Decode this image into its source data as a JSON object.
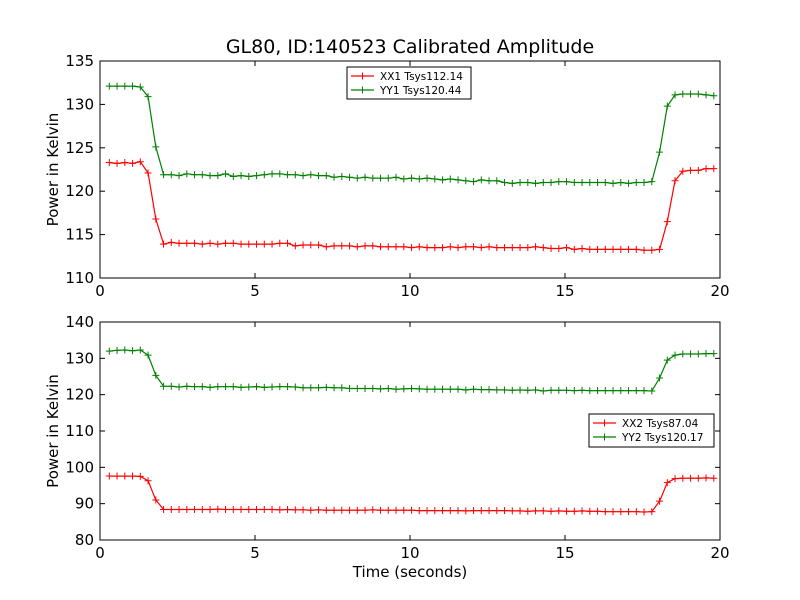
{
  "chart_data": [
    {
      "type": "line",
      "title": "GL80, ID:140523 Calibrated Amplitude",
      "xlabel": "",
      "ylabel": "Power in Kelvin",
      "xlim": [
        0,
        20
      ],
      "ylim": [
        110,
        135
      ],
      "xticks": [
        "0",
        "5",
        "10",
        "15",
        "20"
      ],
      "yticks": [
        "110",
        "115",
        "120",
        "125",
        "130",
        "135"
      ],
      "legend_position": "upper-center",
      "series": [
        {
          "name": "XX1 Tsys112.14",
          "color": "#ff0000",
          "x": [
            0.3,
            0.55,
            0.8,
            1.05,
            1.3,
            1.55,
            1.8,
            2.05,
            2.3,
            2.55,
            2.8,
            3.05,
            3.3,
            3.55,
            3.8,
            4.05,
            4.3,
            4.55,
            4.8,
            5.05,
            5.3,
            5.55,
            5.8,
            6.05,
            6.3,
            6.55,
            6.8,
            7.05,
            7.3,
            7.55,
            7.8,
            8.05,
            8.3,
            8.55,
            8.8,
            9.05,
            9.3,
            9.55,
            9.8,
            10.05,
            10.3,
            10.55,
            10.8,
            11.05,
            11.3,
            11.55,
            11.8,
            12.05,
            12.3,
            12.55,
            12.8,
            13.05,
            13.3,
            13.55,
            13.8,
            14.05,
            14.3,
            14.55,
            14.8,
            15.05,
            15.3,
            15.55,
            15.8,
            16.05,
            16.3,
            16.55,
            16.8,
            17.05,
            17.3,
            17.55,
            17.8,
            18.05,
            18.3,
            18.55,
            18.8,
            19.05,
            19.3,
            19.55,
            19.8
          ],
          "values": [
            123.3,
            123.2,
            123.3,
            123.2,
            123.4,
            122.1,
            116.8,
            113.9,
            114.1,
            114.0,
            114.0,
            114.0,
            113.9,
            114.0,
            113.9,
            114.0,
            114.0,
            113.9,
            113.9,
            113.9,
            113.9,
            113.9,
            114.0,
            114.0,
            113.7,
            113.8,
            113.8,
            113.8,
            113.6,
            113.7,
            113.7,
            113.7,
            113.6,
            113.7,
            113.7,
            113.6,
            113.6,
            113.6,
            113.6,
            113.5,
            113.6,
            113.5,
            113.5,
            113.5,
            113.6,
            113.5,
            113.6,
            113.6,
            113.5,
            113.6,
            113.5,
            113.5,
            113.5,
            113.5,
            113.5,
            113.6,
            113.5,
            113.4,
            113.4,
            113.5,
            113.3,
            113.4,
            113.3,
            113.3,
            113.3,
            113.3,
            113.3,
            113.3,
            113.3,
            113.2,
            113.2,
            113.3,
            116.5,
            121.2,
            122.3,
            122.4,
            122.4,
            122.6,
            122.6
          ]
        },
        {
          "name": "YY1 Tsys120.44",
          "color": "#008000",
          "x": [
            0.3,
            0.55,
            0.8,
            1.05,
            1.3,
            1.55,
            1.8,
            2.05,
            2.3,
            2.55,
            2.8,
            3.05,
            3.3,
            3.55,
            3.8,
            4.05,
            4.3,
            4.55,
            4.8,
            5.05,
            5.3,
            5.55,
            5.8,
            6.05,
            6.3,
            6.55,
            6.8,
            7.05,
            7.3,
            7.55,
            7.8,
            8.05,
            8.3,
            8.55,
            8.8,
            9.05,
            9.3,
            9.55,
            9.8,
            10.05,
            10.3,
            10.55,
            10.8,
            11.05,
            11.3,
            11.55,
            11.8,
            12.05,
            12.3,
            12.55,
            12.8,
            13.05,
            13.3,
            13.55,
            13.8,
            14.05,
            14.3,
            14.55,
            14.8,
            15.05,
            15.3,
            15.55,
            15.8,
            16.05,
            16.3,
            16.55,
            16.8,
            17.05,
            17.3,
            17.55,
            17.8,
            18.05,
            18.3,
            18.55,
            18.8,
            19.05,
            19.3,
            19.55,
            19.8
          ],
          "values": [
            132.1,
            132.1,
            132.1,
            132.1,
            132.0,
            130.9,
            125.1,
            121.9,
            121.9,
            121.8,
            122.0,
            121.9,
            121.9,
            121.8,
            121.8,
            122.0,
            121.7,
            121.8,
            121.7,
            121.8,
            121.9,
            122.0,
            122.0,
            121.9,
            121.9,
            121.8,
            121.9,
            121.8,
            121.8,
            121.6,
            121.7,
            121.6,
            121.5,
            121.6,
            121.5,
            121.5,
            121.5,
            121.6,
            121.4,
            121.5,
            121.4,
            121.5,
            121.4,
            121.3,
            121.4,
            121.3,
            121.2,
            121.1,
            121.3,
            121.2,
            121.2,
            121.0,
            120.9,
            121.0,
            121.0,
            120.9,
            121.0,
            121.0,
            121.1,
            121.1,
            121.0,
            121.0,
            121.0,
            121.0,
            121.0,
            120.9,
            121.0,
            120.9,
            121.0,
            121.0,
            121.1,
            124.5,
            129.8,
            131.1,
            131.2,
            131.2,
            131.2,
            131.1,
            131.0
          ]
        }
      ]
    },
    {
      "type": "line",
      "title": "",
      "xlabel": "Time (seconds)",
      "ylabel": "Power in Kelvin",
      "xlim": [
        0,
        20
      ],
      "ylim": [
        80,
        140
      ],
      "xticks": [
        "0",
        "5",
        "10",
        "15",
        "20"
      ],
      "yticks": [
        "80",
        "90",
        "100",
        "110",
        "120",
        "130",
        "140"
      ],
      "legend_position": "center-right",
      "series": [
        {
          "name": "XX2 Tsys87.04",
          "color": "#ff0000",
          "x": [
            0.3,
            0.55,
            0.8,
            1.05,
            1.3,
            1.55,
            1.8,
            2.05,
            2.3,
            2.55,
            2.8,
            3.05,
            3.3,
            3.55,
            3.8,
            4.05,
            4.3,
            4.55,
            4.8,
            5.05,
            5.3,
            5.55,
            5.8,
            6.05,
            6.3,
            6.55,
            6.8,
            7.05,
            7.3,
            7.55,
            7.8,
            8.05,
            8.3,
            8.55,
            8.8,
            9.05,
            9.3,
            9.55,
            9.8,
            10.05,
            10.3,
            10.55,
            10.8,
            11.05,
            11.3,
            11.55,
            11.8,
            12.05,
            12.3,
            12.55,
            12.8,
            13.05,
            13.3,
            13.55,
            13.8,
            14.05,
            14.3,
            14.55,
            14.8,
            15.05,
            15.3,
            15.55,
            15.8,
            16.05,
            16.3,
            16.55,
            16.8,
            17.05,
            17.3,
            17.55,
            17.8,
            18.05,
            18.3,
            18.55,
            18.8,
            19.05,
            19.3,
            19.55,
            19.8
          ],
          "values": [
            97.6,
            97.6,
            97.6,
            97.6,
            97.5,
            96.3,
            91.0,
            88.4,
            88.4,
            88.4,
            88.4,
            88.4,
            88.4,
            88.4,
            88.5,
            88.4,
            88.4,
            88.4,
            88.4,
            88.4,
            88.4,
            88.4,
            88.3,
            88.4,
            88.3,
            88.3,
            88.2,
            88.3,
            88.2,
            88.2,
            88.2,
            88.2,
            88.2,
            88.2,
            88.3,
            88.2,
            88.2,
            88.2,
            88.2,
            88.2,
            88.1,
            88.1,
            88.1,
            88.1,
            88.1,
            88.1,
            88.0,
            88.1,
            88.1,
            88.1,
            88.1,
            88.1,
            88.0,
            88.0,
            87.9,
            88.0,
            88.0,
            87.9,
            88.0,
            87.9,
            87.9,
            88.0,
            87.9,
            87.9,
            87.8,
            87.8,
            87.8,
            87.8,
            87.8,
            87.7,
            87.8,
            90.7,
            95.8,
            96.9,
            97.0,
            97.0,
            97.0,
            97.1,
            97.0
          ]
        },
        {
          "name": "YY2 Tsys120.17",
          "color": "#008000",
          "x": [
            0.3,
            0.55,
            0.8,
            1.05,
            1.3,
            1.55,
            1.8,
            2.05,
            2.3,
            2.55,
            2.8,
            3.05,
            3.3,
            3.55,
            3.8,
            4.05,
            4.3,
            4.55,
            4.8,
            5.05,
            5.3,
            5.55,
            5.8,
            6.05,
            6.3,
            6.55,
            6.8,
            7.05,
            7.3,
            7.55,
            7.8,
            8.05,
            8.3,
            8.55,
            8.8,
            9.05,
            9.3,
            9.55,
            9.8,
            10.05,
            10.3,
            10.55,
            10.8,
            11.05,
            11.3,
            11.55,
            11.8,
            12.05,
            12.3,
            12.55,
            12.8,
            13.05,
            13.3,
            13.55,
            13.8,
            14.05,
            14.3,
            14.55,
            14.8,
            15.05,
            15.3,
            15.55,
            15.8,
            16.05,
            16.3,
            16.55,
            16.8,
            17.05,
            17.3,
            17.55,
            17.8,
            18.05,
            18.3,
            18.55,
            18.8,
            19.05,
            19.3,
            19.55,
            19.8
          ],
          "values": [
            132.0,
            132.2,
            132.3,
            132.1,
            132.3,
            130.9,
            125.3,
            122.3,
            122.3,
            122.1,
            122.3,
            122.2,
            122.2,
            122.0,
            122.2,
            122.2,
            122.2,
            122.0,
            122.1,
            122.2,
            122.0,
            122.1,
            122.2,
            122.2,
            122.1,
            121.9,
            121.9,
            121.9,
            122.0,
            121.9,
            121.9,
            121.7,
            121.7,
            121.7,
            121.7,
            121.6,
            121.7,
            121.5,
            121.6,
            121.7,
            121.6,
            121.5,
            121.5,
            121.5,
            121.5,
            121.5,
            121.3,
            121.5,
            121.4,
            121.4,
            121.3,
            121.3,
            121.2,
            121.3,
            121.2,
            121.3,
            121.0,
            121.2,
            121.2,
            121.2,
            121.1,
            121.2,
            121.1,
            121.1,
            121.1,
            121.1,
            121.1,
            121.1,
            121.1,
            121.1,
            121.0,
            124.6,
            129.5,
            130.9,
            131.2,
            131.2,
            131.2,
            131.3,
            131.3
          ]
        }
      ]
    }
  ]
}
